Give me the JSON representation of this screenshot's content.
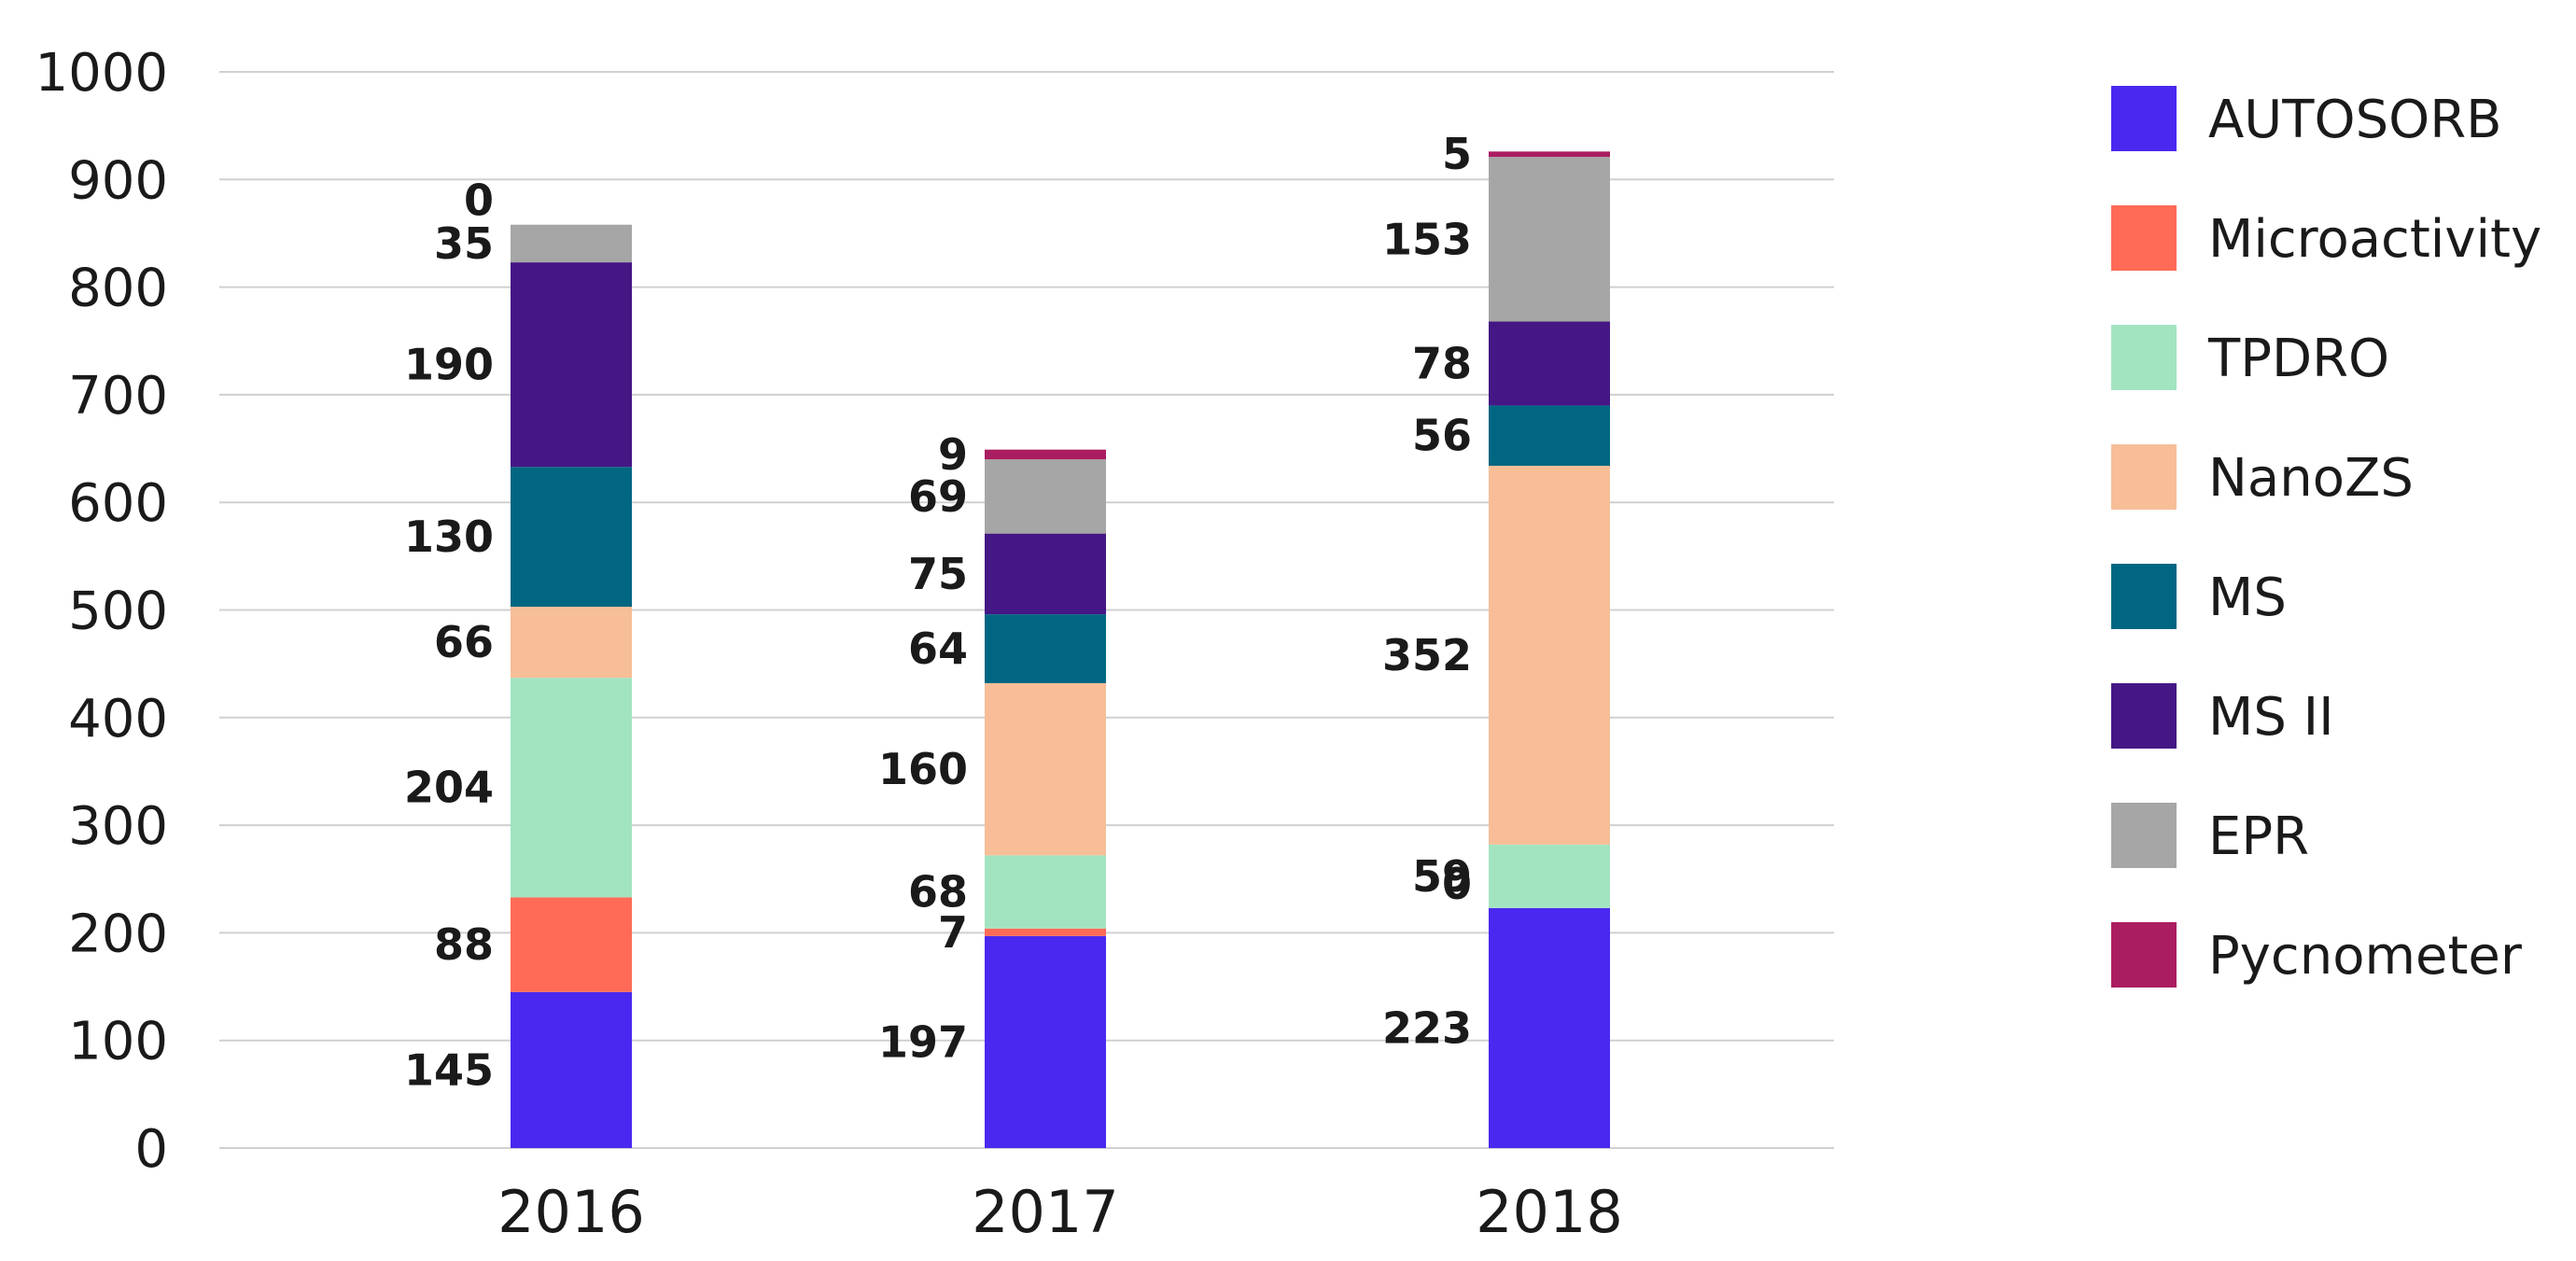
{
  "chart_data": {
    "type": "bar",
    "stacked": true,
    "categories": [
      "2016",
      "2017",
      "2018"
    ],
    "series": [
      {
        "name": "AUTOSORB",
        "color": "#4a28f0",
        "values": [
          145,
          197,
          223
        ]
      },
      {
        "name": "Microactivity",
        "color": "#ff6b57",
        "values": [
          88,
          7,
          0
        ]
      },
      {
        "name": "TPDRO",
        "color": "#a3e4c0",
        "values": [
          204,
          68,
          59
        ]
      },
      {
        "name": "NanoZS",
        "color": "#f7be98",
        "values": [
          66,
          160,
          352
        ]
      },
      {
        "name": "MS",
        "color": "#016682",
        "values": [
          130,
          64,
          56
        ]
      },
      {
        "name": "MS II",
        "color": "#451785",
        "values": [
          190,
          75,
          78
        ]
      },
      {
        "name": "EPR",
        "color": "#a6a6a6",
        "values": [
          35,
          69,
          153
        ]
      },
      {
        "name": "Pycnometer",
        "color": "#ab1d61",
        "values": [
          0,
          9,
          5
        ]
      }
    ],
    "ylim": [
      0,
      1000
    ],
    "yticks": [
      0,
      100,
      200,
      300,
      400,
      500,
      600,
      700,
      800,
      900,
      1000
    ],
    "grid": true,
    "legend": "right"
  }
}
